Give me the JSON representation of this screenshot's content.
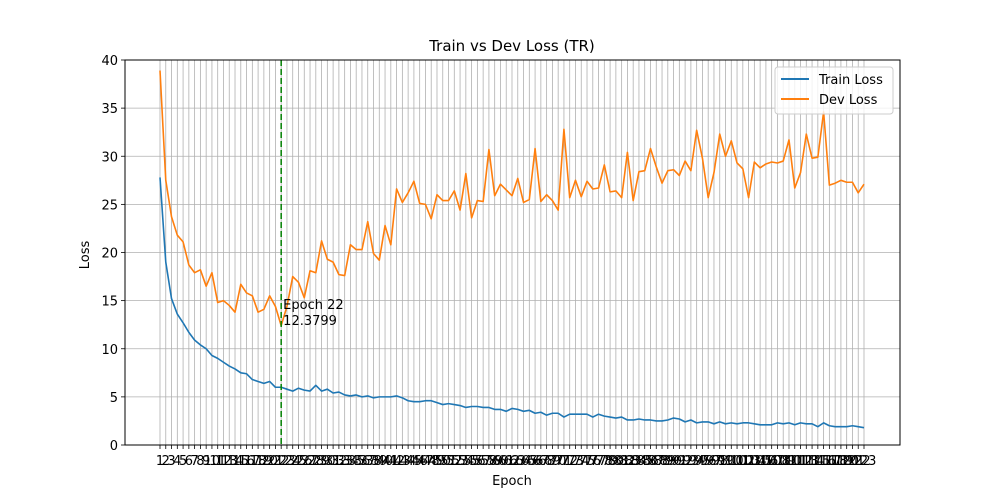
{
  "chart_data": {
    "type": "line",
    "title": "Train vs Dev Loss (TR)",
    "xlabel": "Epoch",
    "ylabel": "Loss",
    "xlim": [
      1,
      123
    ],
    "ylim": [
      0,
      40
    ],
    "yticks": [
      0,
      5,
      10,
      15,
      20,
      25,
      30,
      35,
      40
    ],
    "grid": true,
    "legend_position": "top-right",
    "series": [
      {
        "name": "Train Loss",
        "color": "#1f77b4",
        "values": [
          27.8,
          19.0,
          15.2,
          13.6,
          12.7,
          11.7,
          10.9,
          10.4,
          10.0,
          9.3,
          9.0,
          8.6,
          8.2,
          7.9,
          7.5,
          7.4,
          6.8,
          6.6,
          6.4,
          6.6,
          6.0,
          6.0,
          5.8,
          5.6,
          5.9,
          5.7,
          5.6,
          6.2,
          5.6,
          5.8,
          5.4,
          5.5,
          5.2,
          5.1,
          5.2,
          5.0,
          5.1,
          4.9,
          5.0,
          5.0,
          5.0,
          5.1,
          4.9,
          4.6,
          4.5,
          4.5,
          4.6,
          4.6,
          4.4,
          4.2,
          4.3,
          4.2,
          4.1,
          3.9,
          4.0,
          4.0,
          3.9,
          3.9,
          3.7,
          3.7,
          3.5,
          3.8,
          3.7,
          3.5,
          3.6,
          3.3,
          3.4,
          3.1,
          3.3,
          3.3,
          2.9,
          3.2,
          3.2,
          3.2,
          3.2,
          2.9,
          3.2,
          3.0,
          2.9,
          2.8,
          2.9,
          2.6,
          2.6,
          2.7,
          2.6,
          2.6,
          2.5,
          2.5,
          2.6,
          2.8,
          2.7,
          2.4,
          2.6,
          2.3,
          2.4,
          2.4,
          2.2,
          2.4,
          2.2,
          2.3,
          2.2,
          2.3,
          2.3,
          2.2,
          2.1,
          2.1,
          2.1,
          2.3,
          2.2,
          2.3,
          2.1,
          2.3,
          2.2,
          2.2,
          1.9,
          2.3,
          2.0,
          1.9,
          1.9,
          1.9,
          2.0,
          1.9,
          1.8
        ]
      },
      {
        "name": "Dev Loss",
        "color": "#ff7f0e",
        "values": [
          38.9,
          27.5,
          23.7,
          21.8,
          21.1,
          18.7,
          17.9,
          18.2,
          16.5,
          17.9,
          14.8,
          15.0,
          14.5,
          13.8,
          16.7,
          15.8,
          15.5,
          13.8,
          14.1,
          15.5,
          14.4,
          12.4,
          14.4,
          17.5,
          16.9,
          15.3,
          18.1,
          17.9,
          21.2,
          19.3,
          19.0,
          17.7,
          17.6,
          20.8,
          20.3,
          20.3,
          23.2,
          19.9,
          19.2,
          22.8,
          20.8,
          26.6,
          25.2,
          26.2,
          27.4,
          25.1,
          25.0,
          23.5,
          26.0,
          25.4,
          25.4,
          26.4,
          24.4,
          28.2,
          23.6,
          25.4,
          25.3,
          30.7,
          25.9,
          27.1,
          26.5,
          25.9,
          27.7,
          25.2,
          25.5,
          30.8,
          25.3,
          26.0,
          25.4,
          24.4,
          32.8,
          25.7,
          27.5,
          25.8,
          27.4,
          26.6,
          26.7,
          29.1,
          26.3,
          26.4,
          25.7,
          30.4,
          25.4,
          28.4,
          28.5,
          30.8,
          28.9,
          27.2,
          28.5,
          28.6,
          28.0,
          29.5,
          28.5,
          32.7,
          29.8,
          25.7,
          28.3,
          32.3,
          30.0,
          31.6,
          29.3,
          28.7,
          25.7,
          29.4,
          28.8,
          29.2,
          29.4,
          29.3,
          29.5,
          31.7,
          26.7,
          28.3,
          32.3,
          29.8,
          29.9,
          34.6,
          27.0,
          27.2,
          27.5,
          27.3,
          27.3,
          26.2,
          27.1
        ]
      }
    ],
    "annotation": {
      "epoch": 22,
      "label_line1": "Epoch 22",
      "label_line2": "12.3799",
      "line_color": "#008000"
    }
  }
}
